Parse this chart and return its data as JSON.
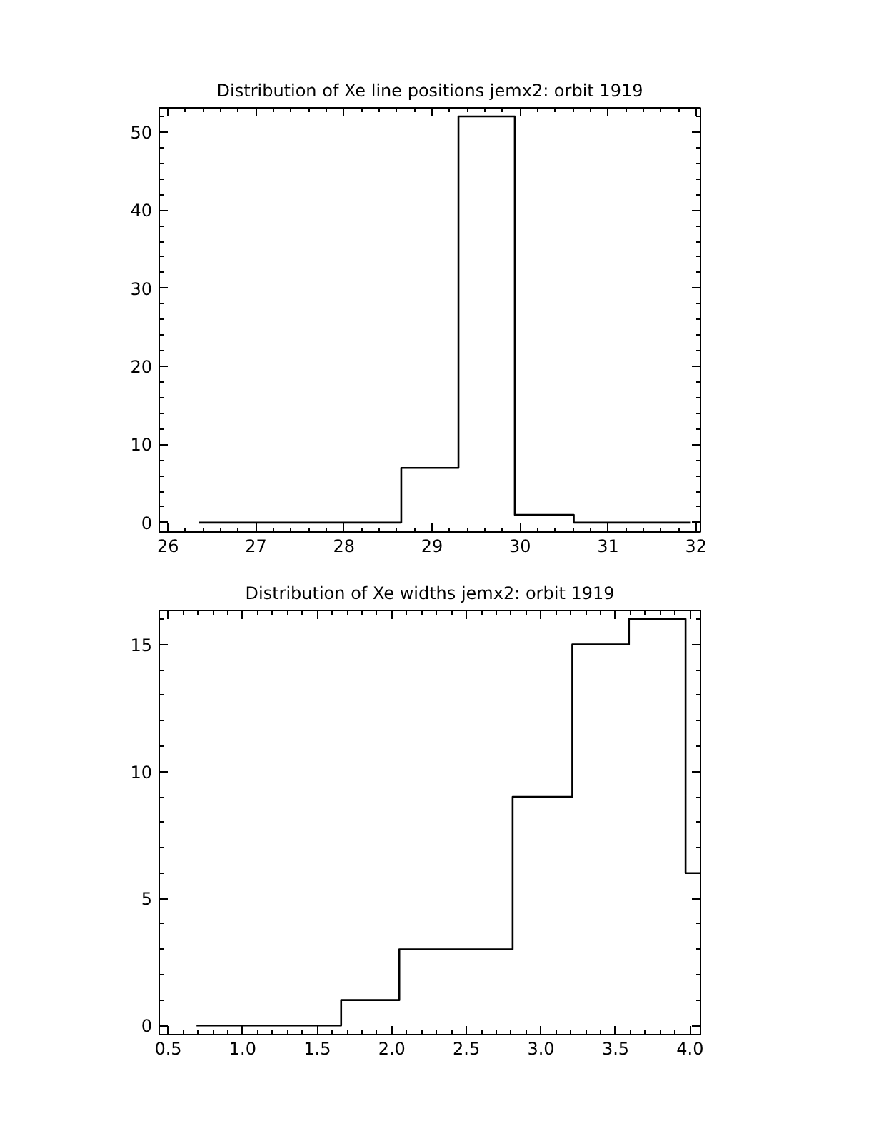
{
  "chart_data": [
    {
      "type": "histogram",
      "title": "Distribution of Xe line positions jemx2: orbit 1919",
      "bins": [
        26.35,
        28.65,
        29.3,
        29.94,
        30.61,
        31.94
      ],
      "values": [
        0,
        7,
        52,
        1,
        0
      ],
      "color": "#000000",
      "xlim": [
        25.9,
        32.05
      ],
      "xticks": [
        26,
        27,
        28,
        29,
        30,
        31,
        32
      ],
      "ylim": [
        -1.2,
        53.1
      ],
      "yticks": [
        0,
        10,
        20,
        30,
        40,
        50
      ],
      "grid": false
    },
    {
      "type": "histogram",
      "title": "Distribution of Xe widths jemx2: orbit 1919",
      "bins": [
        0.69,
        1.66,
        2.05,
        2.81,
        3.21,
        3.59,
        3.97,
        4.07
      ],
      "values": [
        0,
        1,
        3,
        9,
        15,
        16,
        6
      ],
      "color": "#000000",
      "xlim": [
        0.44,
        4.07
      ],
      "xticks": [
        {
          "value": 0.5,
          "label": "0.5"
        },
        {
          "value": 1,
          "label": "1.0"
        },
        {
          "value": 1.5,
          "label": "1.5"
        },
        {
          "value": 2,
          "label": "2.0"
        },
        {
          "value": 2.5,
          "label": "2.5"
        },
        {
          "value": 3,
          "label": "3.0"
        },
        {
          "value": 3.5,
          "label": "3.5"
        },
        {
          "value": 4,
          "label": "4.0"
        }
      ],
      "ylim": [
        -0.36,
        16.34
      ],
      "yticks": [
        0,
        5,
        10,
        15
      ],
      "grid": false
    }
  ]
}
